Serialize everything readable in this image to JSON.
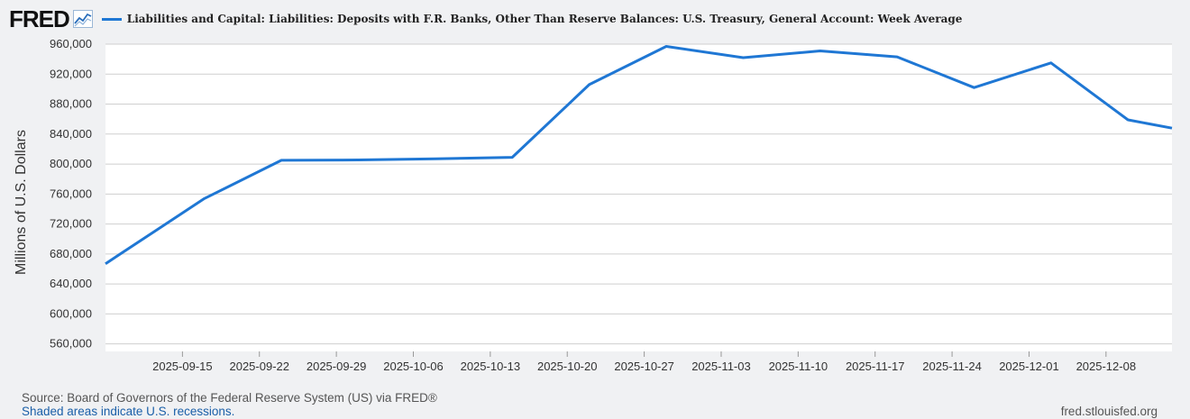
{
  "brand": {
    "logo_text": "FRED",
    "logo_icon": "trend-line-icon"
  },
  "colors": {
    "series": "#1f77d4",
    "grid": "#cfcfcf",
    "plot_bg": "#ffffff",
    "page_bg": "#f0f1f3"
  },
  "chart_data": {
    "type": "line",
    "title": "",
    "legend": [
      "Liabilities and Capital: Liabilities: Deposits with F.R. Banks, Other Than Reserve Balances: U.S. Treasury, General Account: Week Average"
    ],
    "xlabel": "",
    "ylabel": "Millions of U.S. Dollars",
    "ylim": [
      550000,
      960000
    ],
    "yticks": [
      560000,
      600000,
      640000,
      680000,
      720000,
      760000,
      800000,
      840000,
      880000,
      920000,
      960000
    ],
    "ytick_labels": [
      "560,000",
      "600,000",
      "640,000",
      "680,000",
      "720,000",
      "760,000",
      "800,000",
      "840,000",
      "880,000",
      "920,000",
      "960,000"
    ],
    "xlim": [
      "2025-09-08",
      "2025-12-14"
    ],
    "xtick_labels": [
      "2025-09-15",
      "2025-09-22",
      "2025-09-29",
      "2025-10-06",
      "2025-10-13",
      "2025-10-20",
      "2025-10-27",
      "2025-11-03",
      "2025-11-10",
      "2025-11-17",
      "2025-11-24",
      "2025-12-01",
      "2025-12-08"
    ],
    "grid": true,
    "series": [
      {
        "name": "Liabilities and Capital: Liabilities: Deposits with F.R. Banks, Other Than Reserve Balances: U.S. Treasury, General Account: Week Average",
        "x": [
          "2025-09-08",
          "2025-09-17",
          "2025-09-24",
          "2025-10-01",
          "2025-10-08",
          "2025-10-15",
          "2025-10-22",
          "2025-10-29",
          "2025-11-05",
          "2025-11-12",
          "2025-11-19",
          "2025-11-26",
          "2025-12-03",
          "2025-12-10",
          "2025-12-14"
        ],
        "values": [
          667000,
          754000,
          805000,
          805500,
          807000,
          809000,
          906000,
          957000,
          942000,
          951000,
          943000,
          902000,
          935000,
          859000,
          848000
        ]
      }
    ]
  },
  "footer": {
    "source": "Source: Board of Governors of the Federal Reserve System (US) via FRED®",
    "note": "Shaded areas indicate U.S. recessions.",
    "site": "fred.stlouisfed.org"
  }
}
